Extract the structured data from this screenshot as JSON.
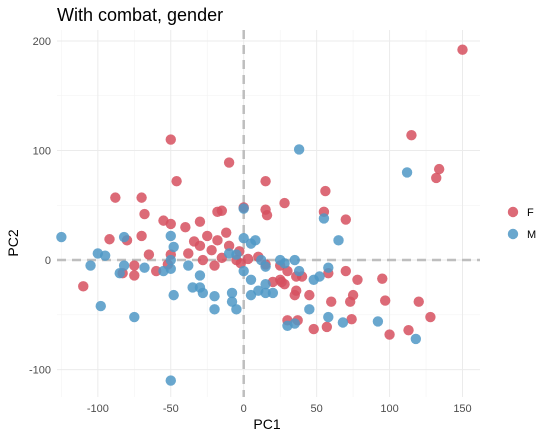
{
  "chart_data": {
    "type": "scatter",
    "title": "With combat, gender",
    "xlabel": "PC1",
    "ylabel": "PC2",
    "xlim": [
      -128,
      162
    ],
    "ylim": [
      -125,
      210
    ],
    "x_ticks": [
      -100,
      -50,
      0,
      50,
      100,
      150
    ],
    "y_ticks": [
      -100,
      0,
      100,
      200
    ],
    "grid": true,
    "reference_lines": {
      "x": 0,
      "y": 0,
      "style": "dashed",
      "color": "#bebebe"
    },
    "legend": {
      "position": "right"
    },
    "series": [
      {
        "name": "F",
        "color": "#d6505f",
        "points": [
          [
            150,
            192
          ],
          [
            115,
            114
          ],
          [
            134,
            83
          ],
          [
            132,
            75
          ],
          [
            -50,
            110
          ],
          [
            -70,
            57
          ],
          [
            -46,
            72
          ],
          [
            -88,
            57
          ],
          [
            -68,
            42
          ],
          [
            -10,
            89
          ],
          [
            15,
            72
          ],
          [
            56,
            63
          ],
          [
            -18,
            44
          ],
          [
            -15,
            45
          ],
          [
            0,
            48
          ],
          [
            15,
            46
          ],
          [
            16,
            41
          ],
          [
            28,
            52
          ],
          [
            55,
            44
          ],
          [
            70,
            37
          ],
          [
            -55,
            36
          ],
          [
            -50,
            33
          ],
          [
            -70,
            22
          ],
          [
            -92,
            19
          ],
          [
            -30,
            35
          ],
          [
            -40,
            30
          ],
          [
            -12,
            25
          ],
          [
            -25,
            22
          ],
          [
            -18,
            18
          ],
          [
            -34,
            17
          ],
          [
            -30,
            13
          ],
          [
            -38,
            6
          ],
          [
            -22,
            9
          ],
          [
            -15,
            2
          ],
          [
            -10,
            13
          ],
          [
            -5,
            0
          ],
          [
            -2,
            -3
          ],
          [
            -3,
            8
          ],
          [
            3,
            1
          ],
          [
            10,
            3
          ],
          [
            -20,
            -5
          ],
          [
            -28,
            0
          ],
          [
            -50,
            5
          ],
          [
            -65,
            5
          ],
          [
            -80,
            18
          ],
          [
            -83,
            -12
          ],
          [
            -75,
            -14
          ],
          [
            -52,
            -4
          ],
          [
            -60,
            -10
          ],
          [
            15,
            -4
          ],
          [
            25,
            -5
          ],
          [
            30,
            -10
          ],
          [
            25,
            -18
          ],
          [
            20,
            -20
          ],
          [
            28,
            -22
          ],
          [
            26,
            -20
          ],
          [
            36,
            -15
          ],
          [
            40,
            -15
          ],
          [
            58,
            -12
          ],
          [
            36,
            -28
          ],
          [
            45,
            -32
          ],
          [
            35,
            -32
          ],
          [
            70,
            -10
          ],
          [
            78,
            -18
          ],
          [
            95,
            -17
          ],
          [
            97,
            -37
          ],
          [
            75,
            -32
          ],
          [
            73,
            -38
          ],
          [
            60,
            -38
          ],
          [
            74,
            -54
          ],
          [
            57,
            -61
          ],
          [
            48,
            -63
          ],
          [
            37,
            -55
          ],
          [
            30,
            -55
          ],
          [
            113,
            -64
          ],
          [
            100,
            -68
          ],
          [
            128,
            -52
          ],
          [
            120,
            -38
          ],
          [
            -110,
            -24
          ],
          [
            -75,
            -5
          ]
        ]
      },
      {
        "name": "M",
        "color": "#4f98c6",
        "points": [
          [
            38,
            101
          ],
          [
            112,
            80
          ],
          [
            -125,
            21
          ],
          [
            -82,
            21
          ],
          [
            -50,
            22
          ],
          [
            -48,
            12
          ],
          [
            0,
            47
          ],
          [
            55,
            38
          ],
          [
            65,
            18
          ],
          [
            0,
            20
          ],
          [
            5,
            15
          ],
          [
            8,
            18
          ],
          [
            -5,
            5
          ],
          [
            -10,
            6
          ],
          [
            -38,
            -5
          ],
          [
            -50,
            -8
          ],
          [
            -55,
            -10
          ],
          [
            -68,
            -7
          ],
          [
            -82,
            -5
          ],
          [
            -95,
            4
          ],
          [
            -100,
            6
          ],
          [
            -105,
            -5
          ],
          [
            -98,
            -42
          ],
          [
            -85,
            -12
          ],
          [
            -75,
            -52
          ],
          [
            -48,
            -32
          ],
          [
            -35,
            -25
          ],
          [
            -30,
            -25
          ],
          [
            -28,
            -30
          ],
          [
            -20,
            -33
          ],
          [
            -20,
            -45
          ],
          [
            -8,
            -38
          ],
          [
            -5,
            -45
          ],
          [
            5,
            -32
          ],
          [
            10,
            -28
          ],
          [
            15,
            -22
          ],
          [
            20,
            -30
          ],
          [
            25,
            0
          ],
          [
            35,
            0
          ],
          [
            38,
            -10
          ],
          [
            48,
            -18
          ],
          [
            45,
            -45
          ],
          [
            35,
            -58
          ],
          [
            30,
            -60
          ],
          [
            58,
            -52
          ],
          [
            68,
            -57
          ],
          [
            92,
            -56
          ],
          [
            118,
            -72
          ],
          [
            -30,
            -14
          ],
          [
            -50,
            -110
          ],
          [
            15,
            -6
          ],
          [
            12,
            0
          ],
          [
            28,
            -3
          ],
          [
            52,
            -15
          ],
          [
            58,
            -7
          ],
          [
            0,
            -10
          ],
          [
            5,
            -18
          ],
          [
            15,
            -30
          ],
          [
            -8,
            -30
          ],
          [
            -50,
            0
          ]
        ]
      }
    ]
  }
}
